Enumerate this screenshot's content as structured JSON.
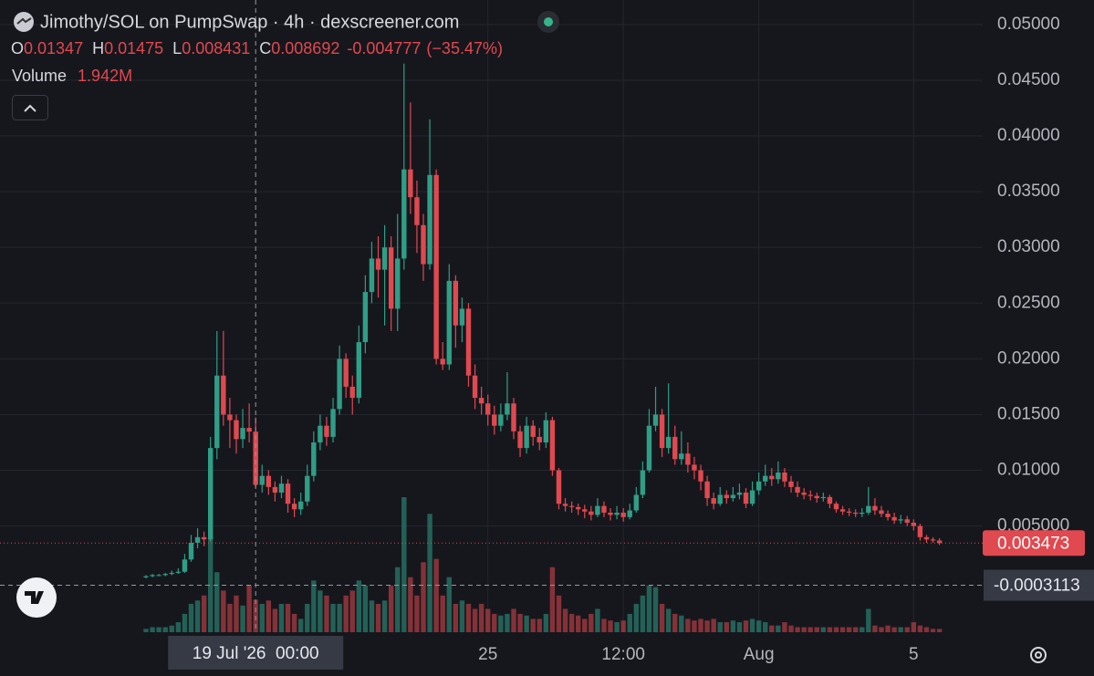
{
  "chart_data": {
    "type": "candlestick",
    "title": "Jimothy/SOL on PumpSwap · 4h · dexscreener.com",
    "legend": {
      "open_label": "O",
      "open": 0.01347,
      "high_label": "H",
      "high": 0.01475,
      "low_label": "L",
      "low": 0.008431,
      "close_label": "C",
      "close": 0.008692,
      "change": -0.004777,
      "change_pct": "(−35.47%)",
      "volume_label": "Volume",
      "volume": "1.942M"
    },
    "colors": {
      "up": "#2f9e86",
      "down": "#e0494f"
    },
    "x": [
      "2026-07-16 04:00",
      "2026-07-16 08:00",
      "2026-07-16 12:00",
      "2026-07-16 16:00",
      "2026-07-16 20:00",
      "2026-07-17 00:00",
      "2026-07-17 04:00",
      "2026-07-17 08:00",
      "2026-07-17 12:00",
      "2026-07-17 16:00",
      "2026-07-17 20:00",
      "2026-07-18 00:00",
      "2026-07-18 04:00",
      "2026-07-18 08:00",
      "2026-07-18 12:00",
      "2026-07-18 16:00",
      "2026-07-18 20:00",
      "2026-07-19 00:00",
      "2026-07-19 04:00",
      "2026-07-19 08:00",
      "2026-07-19 12:00",
      "2026-07-19 16:00",
      "2026-07-19 20:00",
      "2026-07-20 00:00",
      "2026-07-20 04:00",
      "2026-07-20 08:00",
      "2026-07-20 12:00",
      "2026-07-20 16:00",
      "2026-07-20 20:00",
      "2026-07-21 00:00",
      "2026-07-21 04:00",
      "2026-07-21 08:00",
      "2026-07-21 12:00",
      "2026-07-21 16:00",
      "2026-07-21 20:00",
      "2026-07-22 00:00",
      "2026-07-22 04:00",
      "2026-07-22 08:00",
      "2026-07-22 12:00",
      "2026-07-22 16:00",
      "2026-07-22 20:00",
      "2026-07-23 00:00",
      "2026-07-23 04:00",
      "2026-07-23 08:00",
      "2026-07-23 12:00",
      "2026-07-23 16:00",
      "2026-07-23 20:00",
      "2026-07-24 00:00",
      "2026-07-24 04:00",
      "2026-07-24 08:00",
      "2026-07-24 12:00",
      "2026-07-24 16:00",
      "2026-07-24 20:00",
      "2026-07-25 00:00",
      "2026-07-25 04:00",
      "2026-07-25 08:00",
      "2026-07-25 12:00",
      "2026-07-25 16:00",
      "2026-07-25 20:00",
      "2026-07-26 00:00",
      "2026-07-26 04:00",
      "2026-07-26 08:00",
      "2026-07-26 12:00",
      "2026-07-26 16:00",
      "2026-07-26 20:00",
      "2026-07-27 00:00",
      "2026-07-27 04:00",
      "2026-07-27 08:00",
      "2026-07-27 12:00",
      "2026-07-27 16:00",
      "2026-07-27 20:00",
      "2026-07-28 00:00",
      "2026-07-28 04:00",
      "2026-07-28 08:00",
      "2026-07-28 12:00",
      "2026-07-28 16:00",
      "2026-07-28 20:00",
      "2026-07-29 00:00",
      "2026-07-29 04:00",
      "2026-07-29 08:00",
      "2026-07-29 12:00",
      "2026-07-29 16:00",
      "2026-07-29 20:00",
      "2026-07-30 00:00",
      "2026-07-30 04:00",
      "2026-07-30 08:00",
      "2026-07-30 12:00",
      "2026-07-30 16:00",
      "2026-07-30 20:00",
      "2026-07-31 00:00",
      "2026-07-31 04:00",
      "2026-07-31 08:00",
      "2026-07-31 12:00",
      "2026-07-31 16:00",
      "2026-07-31 20:00",
      "2026-08-01 00:00",
      "2026-08-01 04:00",
      "2026-08-01 08:00",
      "2026-08-01 12:00",
      "2026-08-01 16:00",
      "2026-08-01 20:00",
      "2026-08-02 00:00",
      "2026-08-02 04:00",
      "2026-08-02 08:00",
      "2026-08-02 12:00",
      "2026-08-02 16:00",
      "2026-08-02 20:00",
      "2026-08-03 00:00",
      "2026-08-03 04:00",
      "2026-08-03 08:00",
      "2026-08-03 12:00",
      "2026-08-03 16:00",
      "2026-08-03 20:00",
      "2026-08-04 00:00",
      "2026-08-04 04:00",
      "2026-08-04 08:00",
      "2026-08-04 12:00",
      "2026-08-04 16:00",
      "2026-08-04 20:00",
      "2026-08-05 00:00",
      "2026-08-05 04:00",
      "2026-08-05 08:00",
      "2026-08-05 12:00",
      "2026-08-05 16:00"
    ],
    "open": [
      0.0004,
      0.0005,
      0.0006,
      0.0006,
      0.0007,
      0.0008,
      0.0009,
      0.002,
      0.0035,
      0.004,
      0.0038,
      0.012,
      0.0185,
      0.015,
      0.0145,
      0.0128,
      0.0138,
      0.01347,
      0.008692,
      0.0095,
      0.0085,
      0.008,
      0.0088,
      0.007,
      0.0065,
      0.0072,
      0.0095,
      0.0125,
      0.014,
      0.013,
      0.0155,
      0.02,
      0.0175,
      0.0165,
      0.0215,
      0.026,
      0.029,
      0.028,
      0.03,
      0.0245,
      0.029,
      0.037,
      0.0345,
      0.032,
      0.0285,
      0.0365,
      0.02,
      0.0195,
      0.027,
      0.023,
      0.0245,
      0.0185,
      0.0165,
      0.016,
      0.015,
      0.014,
      0.015,
      0.016,
      0.0135,
      0.012,
      0.014,
      0.013,
      0.0125,
      0.0145,
      0.01,
      0.007,
      0.0068,
      0.0067,
      0.0065,
      0.0063,
      0.006,
      0.0068,
      0.0062,
      0.006,
      0.0062,
      0.0058,
      0.0064,
      0.0078,
      0.01,
      0.014,
      0.015,
      0.012,
      0.013,
      0.011,
      0.0115,
      0.0105,
      0.01,
      0.009,
      0.0075,
      0.007,
      0.0078,
      0.0075,
      0.0078,
      0.008,
      0.007,
      0.0082,
      0.009,
      0.0095,
      0.0092,
      0.0098,
      0.009,
      0.0085,
      0.008,
      0.0078,
      0.0077,
      0.0075,
      0.0076,
      0.007,
      0.0065,
      0.0063,
      0.0062,
      0.0061,
      0.0062,
      0.0068,
      0.0064,
      0.0061,
      0.0058,
      0.0055,
      0.0056,
      0.0053,
      0.005,
      0.004,
      0.0038,
      0.0037
    ],
    "high": [
      0.0006,
      0.0007,
      0.0007,
      0.0008,
      0.001,
      0.0012,
      0.0025,
      0.0042,
      0.0048,
      0.0045,
      0.013,
      0.0225,
      0.0225,
      0.0165,
      0.015,
      0.0155,
      0.016,
      0.01475,
      0.0105,
      0.01,
      0.009,
      0.0095,
      0.0092,
      0.0075,
      0.008,
      0.0105,
      0.0135,
      0.015,
      0.0148,
      0.0165,
      0.0212,
      0.0205,
      0.0185,
      0.023,
      0.0275,
      0.0305,
      0.031,
      0.032,
      0.031,
      0.033,
      0.0465,
      0.043,
      0.036,
      0.033,
      0.0415,
      0.037,
      0.0215,
      0.0285,
      0.0275,
      0.0255,
      0.025,
      0.0195,
      0.0175,
      0.0168,
      0.0158,
      0.016,
      0.0188,
      0.0165,
      0.014,
      0.0148,
      0.0145,
      0.0138,
      0.0152,
      0.0148,
      0.0102,
      0.0075,
      0.0072,
      0.007,
      0.0069,
      0.0068,
      0.0075,
      0.0072,
      0.0066,
      0.0068,
      0.0066,
      0.007,
      0.0085,
      0.0108,
      0.0155,
      0.0175,
      0.0155,
      0.0178,
      0.014,
      0.0135,
      0.0125,
      0.0112,
      0.0105,
      0.0095,
      0.008,
      0.0085,
      0.0082,
      0.0085,
      0.0088,
      0.0084,
      0.009,
      0.0098,
      0.0105,
      0.0102,
      0.0108,
      0.0102,
      0.0095,
      0.009,
      0.0084,
      0.0082,
      0.008,
      0.008,
      0.0078,
      0.0072,
      0.0068,
      0.0066,
      0.0065,
      0.0066,
      0.0085,
      0.0075,
      0.0068,
      0.0064,
      0.0062,
      0.006,
      0.0059,
      0.0056,
      0.0052,
      0.0042,
      0.004,
      0.0039
    ],
    "low": [
      0.0003,
      0.0004,
      0.0005,
      0.0005,
      0.0006,
      0.0007,
      0.0008,
      0.0018,
      0.003,
      0.0032,
      0.0036,
      0.011,
      0.014,
      0.012,
      0.0115,
      0.012,
      0.0125,
      0.008431,
      0.008,
      0.0078,
      0.0072,
      0.0075,
      0.0062,
      0.0058,
      0.006,
      0.0068,
      0.009,
      0.0118,
      0.0122,
      0.0125,
      0.015,
      0.0165,
      0.015,
      0.016,
      0.0205,
      0.025,
      0.0255,
      0.023,
      0.0225,
      0.0225,
      0.028,
      0.033,
      0.0295,
      0.027,
      0.028,
      0.0195,
      0.019,
      0.019,
      0.021,
      0.0215,
      0.0175,
      0.0155,
      0.015,
      0.014,
      0.0132,
      0.0135,
      0.0145,
      0.0128,
      0.0112,
      0.0115,
      0.0122,
      0.0118,
      0.012,
      0.0095,
      0.0065,
      0.0063,
      0.0062,
      0.006,
      0.0057,
      0.0055,
      0.0058,
      0.0058,
      0.0055,
      0.0056,
      0.0054,
      0.0056,
      0.0062,
      0.0075,
      0.0098,
      0.0135,
      0.0112,
      0.0115,
      0.0105,
      0.0105,
      0.0098,
      0.0092,
      0.0082,
      0.0068,
      0.0065,
      0.0068,
      0.007,
      0.0072,
      0.0074,
      0.0066,
      0.0068,
      0.0078,
      0.0086,
      0.0086,
      0.0088,
      0.0085,
      0.008,
      0.0076,
      0.0074,
      0.0073,
      0.0071,
      0.0072,
      0.0066,
      0.0062,
      0.006,
      0.0059,
      0.0058,
      0.0058,
      0.006,
      0.006,
      0.0058,
      0.0055,
      0.0052,
      0.0052,
      0.005,
      0.0046,
      0.0037,
      0.0035,
      0.0035,
      0.0033
    ],
    "close": [
      0.0005,
      0.0006,
      0.0006,
      0.0007,
      0.0008,
      0.0009,
      0.002,
      0.0035,
      0.004,
      0.0038,
      0.012,
      0.0185,
      0.015,
      0.0145,
      0.0128,
      0.0138,
      0.01347,
      0.008692,
      0.0095,
      0.0085,
      0.008,
      0.0088,
      0.007,
      0.0065,
      0.0072,
      0.0095,
      0.0125,
      0.014,
      0.013,
      0.0155,
      0.02,
      0.0175,
      0.0165,
      0.0215,
      0.026,
      0.029,
      0.028,
      0.03,
      0.0245,
      0.029,
      0.037,
      0.0345,
      0.032,
      0.0285,
      0.0365,
      0.02,
      0.0195,
      0.027,
      0.023,
      0.0245,
      0.0185,
      0.0165,
      0.016,
      0.015,
      0.014,
      0.015,
      0.016,
      0.0135,
      0.012,
      0.014,
      0.013,
      0.0125,
      0.0145,
      0.01,
      0.007,
      0.0068,
      0.0067,
      0.0065,
      0.0063,
      0.006,
      0.0068,
      0.0062,
      0.006,
      0.0062,
      0.0058,
      0.0064,
      0.0078,
      0.01,
      0.014,
      0.015,
      0.012,
      0.013,
      0.011,
      0.0115,
      0.0105,
      0.01,
      0.009,
      0.0075,
      0.007,
      0.0078,
      0.0075,
      0.0078,
      0.008,
      0.007,
      0.0082,
      0.009,
      0.0095,
      0.0092,
      0.0098,
      0.009,
      0.0085,
      0.008,
      0.0078,
      0.0077,
      0.0075,
      0.0076,
      0.007,
      0.0065,
      0.0063,
      0.0062,
      0.0061,
      0.0062,
      0.0068,
      0.0064,
      0.0061,
      0.0058,
      0.0055,
      0.0056,
      0.0053,
      0.005,
      0.004,
      0.0038,
      0.0037,
      0.003473
    ],
    "volume": [
      0.2,
      0.3,
      0.3,
      0.3,
      0.4,
      0.6,
      1.1,
      1.7,
      1.9,
      2.2,
      5.8,
      3.6,
      2.5,
      1.7,
      2.2,
      1.6,
      2.8,
      1.942,
      1.7,
      1.9,
      1.4,
      1.7,
      1.7,
      1.1,
      0.8,
      1.7,
      3.1,
      2.5,
      2.2,
      1.7,
      1.7,
      2.2,
      2.5,
      3.1,
      2.8,
      1.9,
      1.7,
      1.9,
      2.8,
      3.9,
      8.1,
      3.3,
      2.2,
      4.2,
      7.1,
      4.4,
      2.2,
      3.3,
      1.7,
      1.9,
      1.7,
      1.4,
      1.7,
      1.4,
      1.1,
      1.0,
      1.1,
      1.4,
      1.1,
      1.0,
      0.8,
      0.8,
      1.1,
      3.9,
      2.2,
      1.4,
      1.1,
      1.0,
      0.8,
      1.1,
      1.4,
      0.8,
      0.7,
      0.6,
      0.7,
      1.1,
      1.7,
      2.2,
      2.8,
      2.7,
      1.7,
      1.4,
      1.1,
      1.0,
      0.8,
      0.7,
      0.8,
      0.7,
      0.8,
      0.6,
      0.6,
      0.7,
      0.6,
      0.7,
      0.8,
      0.7,
      0.6,
      0.4,
      0.4,
      0.6,
      0.4,
      0.3,
      0.3,
      0.3,
      0.3,
      0.3,
      0.3,
      0.3,
      0.3,
      0.3,
      0.3,
      0.3,
      1.4,
      0.4,
      0.3,
      0.4,
      0.3,
      0.3,
      0.3,
      0.6,
      0.4,
      0.3,
      0.2,
      0.2
    ],
    "ylim": [
      -0.0051,
      0.0522
    ],
    "yticks": [
      {
        "value": 0.05,
        "label": "0.05000"
      },
      {
        "value": 0.045,
        "label": "0.04500"
      },
      {
        "value": 0.04,
        "label": "0.04000"
      },
      {
        "value": 0.035,
        "label": "0.03500"
      },
      {
        "value": 0.03,
        "label": "0.03000"
      },
      {
        "value": 0.025,
        "label": "0.02500"
      },
      {
        "value": 0.02,
        "label": "0.02000"
      },
      {
        "value": 0.015,
        "label": "0.01500"
      },
      {
        "value": 0.01,
        "label": "0.01000"
      },
      {
        "value": 0.005,
        "label": "0.005000"
      }
    ],
    "xticks": [
      {
        "value": "2026-07-25 00:00",
        "label": "25"
      },
      {
        "value": "2026-07-28 12:00",
        "label": "12:00"
      },
      {
        "value": "2026-08-01 00:00",
        "label": "Aug"
      },
      {
        "value": "2026-08-05 00:00",
        "label": "5"
      }
    ],
    "grid": true,
    "last_price": 0.003473,
    "crosshair": {
      "x": "2026-07-19 00:00",
      "x_label": "19 Jul '26  00:00",
      "y": -0.0003113
    }
  }
}
